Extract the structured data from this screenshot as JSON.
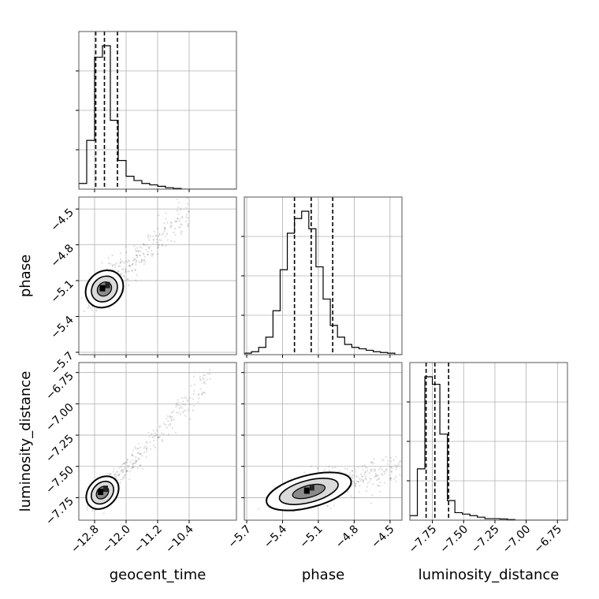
{
  "chart_data": {
    "type": "corner",
    "parameters": [
      "geocent_time",
      "phase",
      "luminosity_distance"
    ],
    "axis_labels": {
      "x": [
        "geocent_time",
        "phase",
        "luminosity_distance"
      ],
      "y": [
        "phase",
        "luminosity_distance"
      ]
    },
    "ranges": {
      "geocent_time": [
        -13.2,
        -9.2
      ],
      "phase": [
        -5.72,
        -4.4
      ],
      "luminosity_distance": [
        -7.93,
        -6.67
      ]
    },
    "ticks": {
      "geocent_time": [
        "-12.8",
        "-12.0",
        "-11.2",
        "-10.4"
      ],
      "phase": [
        "-5.7",
        "-5.4",
        "-5.1",
        "-4.8",
        "-4.5"
      ],
      "luminosity_distance": [
        "-7.75",
        "-7.50",
        "-7.25",
        "-7.00",
        "-6.75"
      ]
    },
    "grid": true,
    "histograms": [
      {
        "parameter": "geocent_time",
        "quantiles": [
          -12.77,
          -12.55,
          -12.22
        ],
        "bin_edges": [
          -13.2,
          -13.0,
          -12.8,
          -12.6,
          -12.4,
          -12.2,
          -12.0,
          -11.8,
          -11.6,
          -11.4,
          -11.2,
          -11.0,
          -10.8,
          -10.6,
          -10.4,
          -10.2,
          -10.0,
          -9.8,
          -9.6,
          -9.4,
          -9.2
        ],
        "counts": [
          0.04,
          0.34,
          0.92,
          1.0,
          0.48,
          0.2,
          0.09,
          0.06,
          0.04,
          0.03,
          0.02,
          0.01,
          0.005,
          0.0,
          0.0,
          0.0,
          0.0,
          0.0,
          0.0,
          0.0
        ]
      },
      {
        "parameter": "phase",
        "quantiles": [
          -5.3,
          -5.16,
          -4.98
        ],
        "bin_edges": [
          -5.72,
          -5.66,
          -5.6,
          -5.54,
          -5.48,
          -5.42,
          -5.36,
          -5.3,
          -5.24,
          -5.18,
          -5.12,
          -5.06,
          -5.0,
          -4.94,
          -4.88,
          -4.82,
          -4.76,
          -4.7,
          -4.64,
          -4.58,
          -4.52,
          -4.46,
          -4.4
        ],
        "counts": [
          0.01,
          0.02,
          0.05,
          0.12,
          0.3,
          0.58,
          0.83,
          0.93,
          0.98,
          0.86,
          0.6,
          0.38,
          0.2,
          0.12,
          0.07,
          0.05,
          0.04,
          0.03,
          0.02,
          0.015,
          0.01,
          0.0
        ]
      },
      {
        "parameter": "luminosity_distance",
        "quantiles": [
          -7.8,
          -7.73,
          -7.62
        ],
        "bin_edges": [
          -7.93,
          -7.87,
          -7.81,
          -7.75,
          -7.69,
          -7.63,
          -7.57,
          -7.51,
          -7.45,
          -7.39,
          -7.33,
          -7.27,
          -7.21,
          -7.15,
          -7.09,
          -7.03,
          -6.97,
          -6.91,
          -6.85,
          -6.79,
          -6.73,
          -6.67
        ],
        "counts": [
          0.03,
          0.34,
          0.95,
          0.9,
          0.57,
          0.13,
          0.05,
          0.04,
          0.03,
          0.02,
          0.01,
          0.01,
          0.008,
          0.004,
          0.0,
          0.0,
          0.0,
          0.0,
          0.0,
          0.0,
          0.0
        ]
      }
    ],
    "scatter_panels": [
      {
        "x": "geocent_time",
        "y": "phase",
        "center": [
          -12.55,
          -5.17
        ],
        "slope": 0.31,
        "sd_major": 0.15,
        "sd_minor": 0.045,
        "tail_extent": [
          -12.8,
          -10.5
        ]
      },
      {
        "x": "geocent_time",
        "y": "luminosity_distance",
        "center": [
          -12.6,
          -7.71
        ],
        "slope": 0.33,
        "sd_major": 0.13,
        "sd_minor": 0.035,
        "tail_extent": [
          -12.8,
          -10.0
        ]
      },
      {
        "x": "phase",
        "y": "luminosity_distance",
        "center": [
          -5.18,
          -7.7
        ],
        "slope": 0.25,
        "sd_major": 0.14,
        "sd_minor": 0.04,
        "tail_extent": [
          -5.25,
          -4.45
        ]
      }
    ]
  }
}
